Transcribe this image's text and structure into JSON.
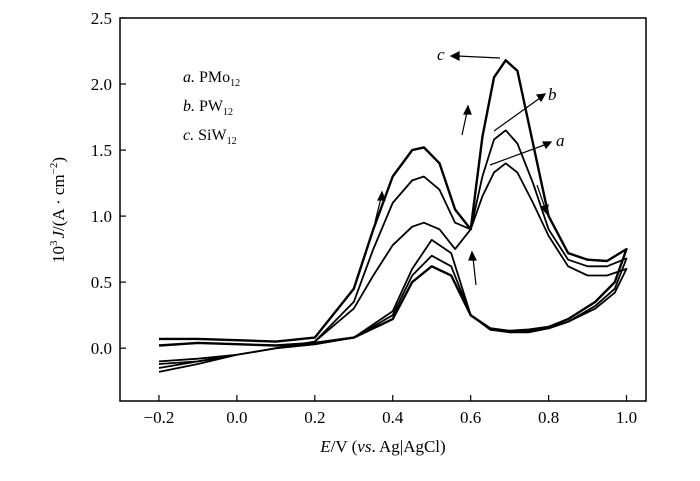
{
  "chart_data": {
    "type": "line",
    "xlabel": "E/V (vs. Ag|AgCl)",
    "ylabel": "10³ J/(A · cm⁻²)",
    "xlim": [
      -0.3,
      1.05
    ],
    "ylim": [
      -0.4,
      2.5
    ],
    "xticks": [
      "-0.2",
      "0.0",
      "0.2",
      "0.4",
      "0.6",
      "0.8",
      "1.0"
    ],
    "yticks": [
      "0.0",
      "0.5",
      "1.0",
      "1.5",
      "2.0",
      "2.5"
    ],
    "grid": false,
    "legend_position": "top-left",
    "legend": [
      {
        "letter": "a.",
        "text": "PMo",
        "sub": "12"
      },
      {
        "letter": "b.",
        "text": "PW",
        "sub": "12"
      },
      {
        "letter": "c.",
        "text": "SiW",
        "sub": "12"
      }
    ],
    "curve_labels": [
      "a",
      "b",
      "c"
    ],
    "series": [
      {
        "name": "a. PMo12",
        "x": [
          -0.2,
          -0.1,
          0.0,
          0.1,
          0.2,
          0.3,
          0.35,
          0.4,
          0.45,
          0.48,
          0.52,
          0.56,
          0.6,
          0.63,
          0.66,
          0.69,
          0.72,
          0.76,
          0.8,
          0.85,
          0.9,
          0.95,
          1.0,
          0.97,
          0.92,
          0.85,
          0.8,
          0.75,
          0.7,
          0.65,
          0.6,
          0.55,
          0.5,
          0.45,
          0.4,
          0.3,
          0.2,
          0.1,
          0.0,
          -0.1,
          -0.2
        ],
        "y": [
          -0.15,
          -0.1,
          -0.05,
          0.0,
          0.05,
          0.3,
          0.55,
          0.78,
          0.92,
          0.95,
          0.9,
          0.75,
          0.9,
          1.15,
          1.33,
          1.4,
          1.33,
          1.1,
          0.85,
          0.62,
          0.55,
          0.55,
          0.6,
          0.42,
          0.3,
          0.2,
          0.15,
          0.12,
          0.12,
          0.15,
          0.25,
          0.72,
          0.82,
          0.6,
          0.28,
          0.08,
          0.03,
          0.0,
          -0.05,
          -0.12,
          -0.18
        ]
      },
      {
        "name": "b. PW12",
        "x": [
          -0.2,
          -0.1,
          0.0,
          0.1,
          0.2,
          0.3,
          0.35,
          0.4,
          0.45,
          0.48,
          0.52,
          0.56,
          0.6,
          0.63,
          0.66,
          0.69,
          0.72,
          0.76,
          0.8,
          0.85,
          0.9,
          0.95,
          1.0,
          0.97,
          0.92,
          0.85,
          0.8,
          0.75,
          0.7,
          0.65,
          0.6,
          0.55,
          0.5,
          0.45,
          0.4,
          0.3,
          0.2,
          0.1,
          0.0,
          -0.1,
          -0.2
        ],
        "y": [
          -0.1,
          -0.08,
          -0.05,
          0.0,
          0.05,
          0.35,
          0.75,
          1.1,
          1.27,
          1.3,
          1.2,
          0.95,
          0.9,
          1.3,
          1.58,
          1.65,
          1.55,
          1.25,
          0.9,
          0.67,
          0.62,
          0.62,
          0.68,
          0.45,
          0.32,
          0.2,
          0.15,
          0.13,
          0.12,
          0.14,
          0.25,
          0.62,
          0.7,
          0.55,
          0.25,
          0.08,
          0.03,
          0.0,
          -0.05,
          -0.1,
          -0.12
        ]
      },
      {
        "name": "c. SiW12",
        "x": [
          -0.2,
          -0.1,
          0.0,
          0.1,
          0.2,
          0.3,
          0.35,
          0.4,
          0.45,
          0.48,
          0.52,
          0.56,
          0.6,
          0.63,
          0.66,
          0.69,
          0.72,
          0.76,
          0.8,
          0.85,
          0.9,
          0.95,
          1.0,
          0.97,
          0.92,
          0.85,
          0.8,
          0.75,
          0.7,
          0.65,
          0.6,
          0.55,
          0.5,
          0.45,
          0.4,
          0.3,
          0.2,
          0.1,
          0.0,
          -0.1,
          -0.2
        ],
        "y": [
          0.07,
          0.07,
          0.06,
          0.05,
          0.08,
          0.45,
          0.9,
          1.3,
          1.5,
          1.52,
          1.4,
          1.05,
          0.9,
          1.6,
          2.05,
          2.18,
          2.1,
          1.55,
          1.0,
          0.72,
          0.67,
          0.66,
          0.75,
          0.5,
          0.35,
          0.22,
          0.16,
          0.14,
          0.13,
          0.15,
          0.25,
          0.55,
          0.62,
          0.5,
          0.22,
          0.08,
          0.04,
          0.02,
          0.03,
          0.04,
          0.02
        ]
      }
    ]
  }
}
